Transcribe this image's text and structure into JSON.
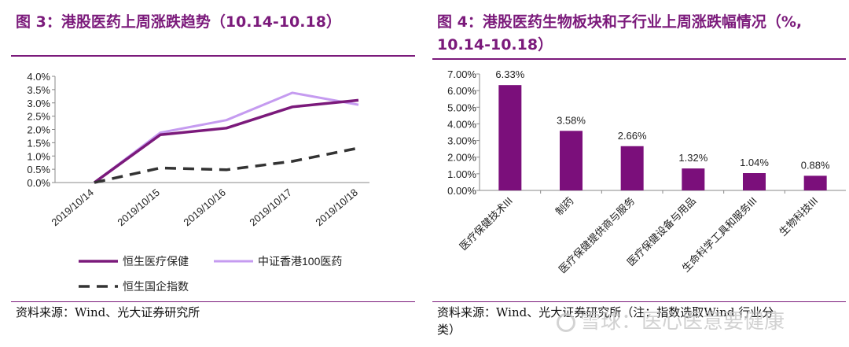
{
  "left": {
    "title": "图 3：港股医药上周涨跌趋势（10.14-10.18）",
    "source": "资料来源：Wind、光大证券研究所"
  },
  "right": {
    "title_line1": "图 4：港股医药生物板块和子行业上周涨跌幅情况（%,",
    "title_line2": "10.14-10.18）",
    "source_line1": "资料来源：Wind、光大证券研究所（注：指数选取Wind 行业分",
    "source_line2": "类）"
  },
  "watermark": "雪球：医心医意要健康",
  "colors": {
    "title": "#7b1a7b",
    "series1": "#7b1a7b",
    "series2": "#c59bf0",
    "series3": "#333333",
    "bar": "#7b0f7b"
  },
  "chart_data": [
    {
      "type": "line",
      "categories": [
        "2019/10/14",
        "2019/10/15",
        "2019/10/16",
        "2019/10/17",
        "2019/10/18"
      ],
      "series": [
        {
          "name": "恒生医疗保健",
          "values": [
            0.0,
            1.8,
            2.05,
            2.85,
            3.1
          ],
          "style": "solid"
        },
        {
          "name": "中证香港100医药",
          "values": [
            0.0,
            1.88,
            2.35,
            3.38,
            2.93
          ],
          "style": "solid"
        },
        {
          "name": "恒生国企指数",
          "values": [
            0.0,
            0.55,
            0.48,
            0.8,
            1.3
          ],
          "style": "dashed"
        }
      ],
      "yticks": [
        "4.0%",
        "3.5%",
        "3.0%",
        "2.5%",
        "2.0%",
        "1.5%",
        "1.0%",
        "0.5%",
        "0.0%"
      ],
      "ylim": [
        0,
        4.0
      ],
      "legend_position": "bottom"
    },
    {
      "type": "bar",
      "categories": [
        "医疗保健技术III",
        "制药",
        "医疗保健提供商与服务",
        "医疗保健设备与用品",
        "生命科学工具和服务III",
        "生物科技III"
      ],
      "values": [
        6.33,
        3.58,
        2.66,
        1.32,
        1.04,
        0.88
      ],
      "value_labels": [
        "6.33%",
        "3.58%",
        "2.66%",
        "1.32%",
        "1.04%",
        "0.88%"
      ],
      "yticks": [
        "7.00%",
        "6.00%",
        "5.00%",
        "4.00%",
        "3.00%",
        "2.00%",
        "1.00%",
        "0.00%"
      ],
      "ylim": [
        0,
        7.0
      ]
    }
  ]
}
